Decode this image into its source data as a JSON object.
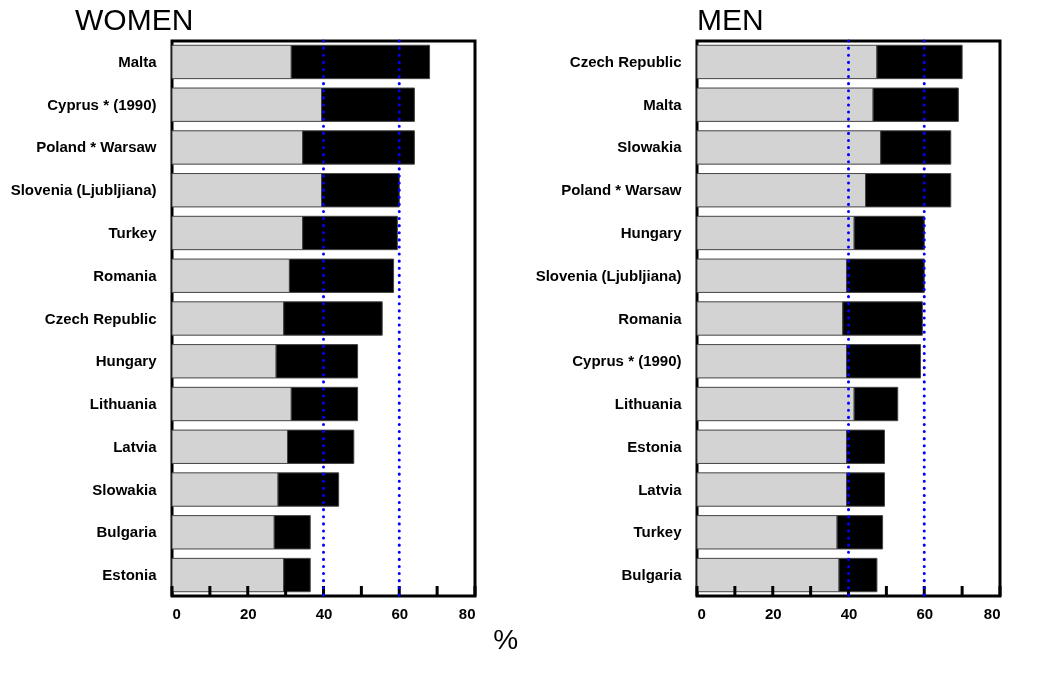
{
  "chart_data": [
    {
      "type": "bar",
      "title": "WOMEN",
      "xlabel": "%",
      "orientation": "horizontal",
      "stacked": true,
      "categories": [
        "Malta",
        "Cyprus * (1990)",
        "Poland * Warsaw",
        "Slovenia (Ljubljiana)",
        "Turkey",
        "Romania",
        "Czech Republic",
        "Hungary",
        "Lithuania",
        "Latvia",
        "Slowakia",
        "Bulgaria",
        "Estonia"
      ],
      "series": [
        {
          "color": "#d3d3d3",
          "values": [
            31.5,
            39.5,
            34.5,
            39.5,
            34.5,
            31,
            29.5,
            27.5,
            31.5,
            30.5,
            28,
            27,
            29.5
          ]
        },
        {
          "color": "#000000",
          "values": [
            36.5,
            24.5,
            29.5,
            20.5,
            25,
            27.5,
            26,
            21.5,
            17.5,
            17.5,
            16,
            9.5,
            7
          ]
        }
      ],
      "xlim": [
        0,
        80
      ],
      "xticks": [
        0,
        {
          "value": 10,
          "label": null
        },
        20,
        {
          "value": 30,
          "label": null
        },
        40,
        {
          "value": 50,
          "label": null
        },
        60,
        {
          "value": 70,
          "label": null
        },
        80
      ],
      "ref_lines": [
        {
          "axis": "x",
          "value": 40,
          "color": "#0000ff",
          "line_style": "dotted"
        },
        {
          "axis": "x",
          "value": 60,
          "color": "#0000ff",
          "line_style": "dotted"
        }
      ]
    },
    {
      "type": "bar",
      "title": "MEN",
      "orientation": "horizontal",
      "stacked": true,
      "categories": [
        "Czech Republic",
        "Malta",
        "Slowakia",
        "Poland * Warsaw",
        "Hungary",
        "Slovenia (Ljubljiana)",
        "Romania",
        "Cyprus * (1990)",
        "Lithuania",
        "Estonia",
        "Latvia",
        "Turkey",
        "Bulgaria"
      ],
      "series": [
        {
          "color": "#d3d3d3",
          "values": [
            47.5,
            46.5,
            48.5,
            44.5,
            41.5,
            39.5,
            38.5,
            39.5,
            41.5,
            39.5,
            39.5,
            37,
            37.5
          ]
        },
        {
          "color": "#000000",
          "values": [
            22.5,
            22.5,
            18.5,
            22.5,
            18.5,
            20.5,
            21,
            19.5,
            11.5,
            10,
            10,
            12,
            10
          ]
        }
      ],
      "xlim": [
        0,
        80
      ],
      "xticks": [
        0,
        {
          "value": 10,
          "label": null
        },
        20,
        {
          "value": 30,
          "label": null
        },
        40,
        {
          "value": 50,
          "label": null
        },
        60,
        {
          "value": 70,
          "label": null
        },
        80
      ],
      "ref_lines": [
        {
          "axis": "x",
          "value": 40,
          "color": "#0000ff",
          "line_style": "dotted"
        },
        {
          "axis": "x",
          "value": 60,
          "color": "#0000ff",
          "line_style": "dotted"
        }
      ]
    }
  ]
}
